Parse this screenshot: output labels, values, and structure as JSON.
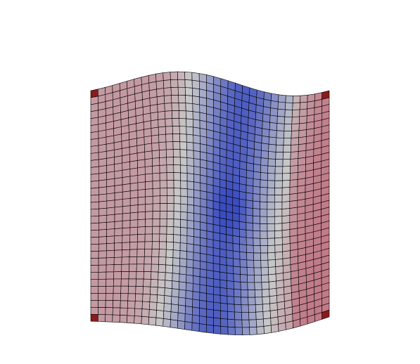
{
  "visualization": {
    "kind": "deformed-quad-mesh",
    "colormap": "cool-warm",
    "mesh": {
      "columns": 33,
      "rows": 33,
      "edge_color": "#000000",
      "corner_highlight_color": "#8b1a1a"
    },
    "palette": {
      "low": "#3a4cc0",
      "mid": "#c9c9c9",
      "high": "#b40426"
    }
  }
}
